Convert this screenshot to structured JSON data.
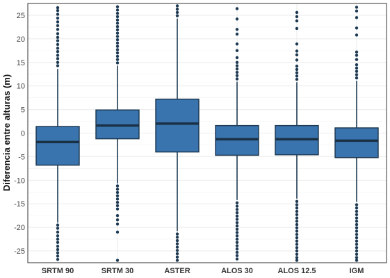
{
  "chart_data": {
    "type": "boxplot",
    "title": "",
    "xlabel": "",
    "ylabel": "Diferencia entre alturas (m)",
    "ylim": [
      -27.5,
      27.5
    ],
    "yticks": [
      -25,
      -20,
      -15,
      -10,
      -5,
      0,
      5,
      10,
      15,
      20,
      25
    ],
    "grid": true,
    "colors": {
      "box_fill": "#3a74af",
      "box_edge": "#1e3a52",
      "median": "#1a3045",
      "outlier": "#1e3a52",
      "grid": "#ebebeb",
      "panel_border": "#333333"
    },
    "categories": [
      "SRTM 90",
      "SRTM 30",
      "ASTER",
      "ALOS 30",
      "ALOS 12.5",
      "IGM"
    ],
    "boxes": [
      {
        "name": "SRTM 90",
        "q1": -6.8,
        "median": -1.9,
        "q3": 1.4,
        "whisker_low": -19.0,
        "whisker_high": 13.6,
        "outliers": [
          -19.5,
          -20.2,
          -21.0,
          -21.8,
          -22.5,
          -23.2,
          -24.0,
          -24.7,
          -25.4,
          -26.1,
          -26.8,
          14.3,
          15.0,
          15.8,
          16.5,
          17.3,
          18.0,
          18.8,
          19.6,
          20.3,
          21.1,
          22.0,
          22.8,
          23.6,
          24.4,
          25.2,
          26.0,
          26.6
        ]
      },
      {
        "name": "SRTM 30",
        "q1": -1.2,
        "median": 1.6,
        "q3": 4.9,
        "whisker_low": -10.7,
        "whisker_high": 14.3,
        "outliers": [
          -11.2,
          -11.9,
          -12.6,
          -13.3,
          -14.0,
          -14.7,
          -15.4,
          -16.1,
          -17.5,
          -18.4,
          -19.3,
          -21.0,
          -27.0,
          14.9,
          15.6,
          16.3,
          17.0,
          17.7,
          18.4,
          19.1,
          19.8,
          20.5,
          21.2,
          21.9,
          22.6,
          23.3,
          24.0,
          24.7,
          25.4,
          26.1,
          26.8
        ]
      },
      {
        "name": "ASTER",
        "q1": -4.0,
        "median": 2.0,
        "q3": 7.2,
        "whisker_low": -20.8,
        "whisker_high": 24.3,
        "outliers": [
          -21.4,
          -22.1,
          -22.8,
          -23.5,
          -24.2,
          -24.9,
          -25.6,
          -26.3,
          -27.0,
          24.9,
          25.6,
          26.3,
          27.0
        ]
      },
      {
        "name": "ALOS 30",
        "q1": -4.7,
        "median": -1.3,
        "q3": 1.6,
        "whisker_low": -14.2,
        "whisker_high": 10.9,
        "outliers": [
          -14.8,
          -15.5,
          -16.2,
          -16.9,
          -17.6,
          -18.3,
          -19.0,
          -19.7,
          -20.4,
          -21.1,
          -21.8,
          -22.5,
          -23.2,
          -23.9,
          -24.6,
          -25.3,
          -26.0,
          -26.7,
          11.5,
          12.2,
          12.9,
          13.6,
          14.3,
          15.0,
          16.0,
          17.5,
          18.9,
          21.0,
          22.0,
          24.2,
          26.4
        ]
      },
      {
        "name": "ALOS 12.5",
        "q1": -4.6,
        "median": -1.3,
        "q3": 1.6,
        "whisker_low": -13.9,
        "whisker_high": 10.8,
        "outliers": [
          -14.5,
          -15.2,
          -15.9,
          -16.6,
          -17.3,
          -18.0,
          -18.7,
          -19.4,
          -20.1,
          -20.8,
          -21.5,
          -22.2,
          -22.9,
          -23.6,
          -24.3,
          -25.0,
          -25.7,
          -26.4,
          -27.0,
          11.4,
          12.1,
          12.8,
          13.5,
          14.2,
          15.5,
          16.6,
          17.4,
          18.9,
          22.2,
          23.8,
          24.7,
          25.6
        ]
      },
      {
        "name": "IGM",
        "q1": -5.2,
        "median": -1.6,
        "q3": 1.1,
        "whisker_low": -14.6,
        "whisker_high": 11.1,
        "outliers": [
          -15.2,
          -15.9,
          -16.6,
          -17.3,
          -18.0,
          -18.7,
          -19.4,
          -20.1,
          -20.8,
          -21.5,
          -22.2,
          -22.9,
          -23.6,
          -24.3,
          -25.0,
          -25.7,
          -26.4,
          -27.0,
          11.7,
          12.4,
          13.1,
          13.8,
          14.5,
          15.6,
          16.5,
          17.2,
          20.8,
          22.3,
          24.5,
          25.9,
          26.7
        ]
      }
    ]
  }
}
